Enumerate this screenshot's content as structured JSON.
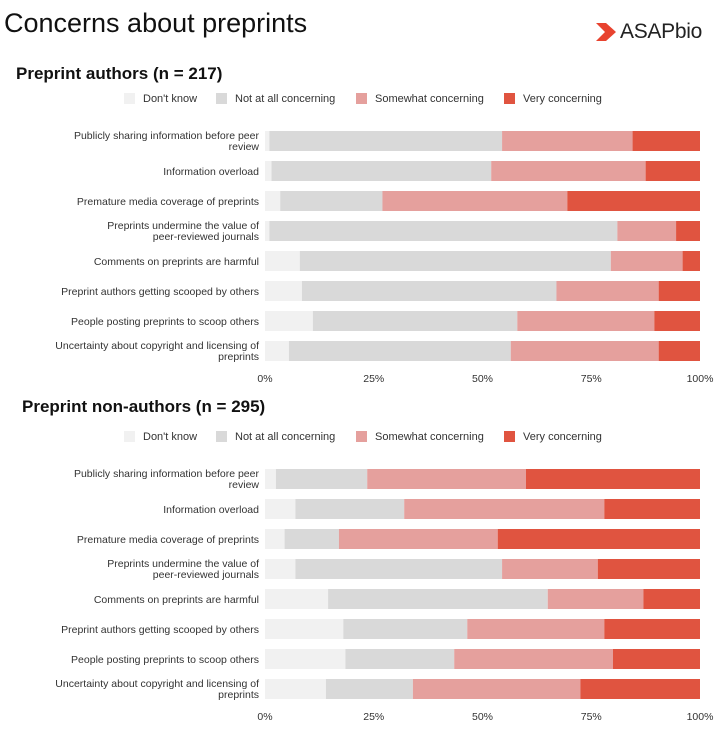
{
  "title": "Concerns about preprints",
  "logo_text": "ASAPbio",
  "colors": {
    "dont_know": "#f1f1f1",
    "not_at_all": "#d9d9d9",
    "somewhat": "#e5a09d",
    "very": "#e05440"
  },
  "chart_data": [
    {
      "type": "bar",
      "orientation": "horizontal",
      "stacked": true,
      "title": "Preprint authors (n = 217)",
      "legend_position": "top",
      "xlim": [
        0,
        100
      ],
      "x_ticks": [
        "0%",
        "25%",
        "50%",
        "75%",
        "100%"
      ],
      "categories": [
        [
          "Publicly sharing information before peer",
          "review"
        ],
        [
          "Information overload"
        ],
        [
          "Premature media coverage of preprints"
        ],
        [
          "Preprints undermine the value of",
          "peer-reviewed journals"
        ],
        [
          "Comments on preprints are harmful"
        ],
        [
          "Preprint authors getting scooped by others"
        ],
        [
          "People posting preprints to scoop others"
        ],
        [
          "Uncertainty about copyright and licensing of",
          "preprints"
        ]
      ],
      "series": [
        {
          "name": "Don't know",
          "color_key": "dont_know",
          "values": [
            1,
            1.5,
            3.5,
            1,
            8,
            8.5,
            11,
            5.5
          ]
        },
        {
          "name": "Not at all concerning",
          "color_key": "not_at_all",
          "values": [
            53.5,
            50.5,
            23.5,
            80,
            71.5,
            58.5,
            47,
            51
          ]
        },
        {
          "name": "Somewhat concerning",
          "color_key": "somewhat",
          "values": [
            30,
            35.5,
            42.5,
            13.5,
            16.5,
            23.5,
            31.5,
            34
          ]
        },
        {
          "name": "Very concerning",
          "color_key": "very",
          "values": [
            15.5,
            12.5,
            30.5,
            5.5,
            4,
            9.5,
            10.5,
            9.5
          ]
        }
      ]
    },
    {
      "type": "bar",
      "orientation": "horizontal",
      "stacked": true,
      "title": "Preprint non-authors (n = 295)",
      "legend_position": "top",
      "xlim": [
        0,
        100
      ],
      "x_ticks": [
        "0%",
        "25%",
        "50%",
        "75%",
        "100%"
      ],
      "categories": [
        [
          "Publicly sharing information before peer",
          "review"
        ],
        [
          "Information overload"
        ],
        [
          "Premature media coverage of preprints"
        ],
        [
          "Preprints undermine the value of",
          "peer-reviewed journals"
        ],
        [
          "Comments on preprints are harmful"
        ],
        [
          "Preprint authors getting scooped by others"
        ],
        [
          "People posting preprints to scoop others"
        ],
        [
          "Uncertainty about copyright and licensing of",
          "preprints"
        ]
      ],
      "series": [
        {
          "name": "Don't know",
          "color_key": "dont_know",
          "values": [
            2.5,
            7,
            4.5,
            7,
            14.5,
            18,
            18.5,
            14
          ]
        },
        {
          "name": "Not at all concerning",
          "color_key": "not_at_all",
          "values": [
            21,
            25,
            12.5,
            47.5,
            50.5,
            28.5,
            25,
            20
          ]
        },
        {
          "name": "Somewhat concerning",
          "color_key": "somewhat",
          "values": [
            36.5,
            46,
            36.5,
            22,
            22,
            31.5,
            36.5,
            38.5
          ]
        },
        {
          "name": "Very concerning",
          "color_key": "very",
          "values": [
            40,
            22,
            46.5,
            23.5,
            13,
            22,
            20,
            27.5
          ]
        }
      ]
    }
  ]
}
